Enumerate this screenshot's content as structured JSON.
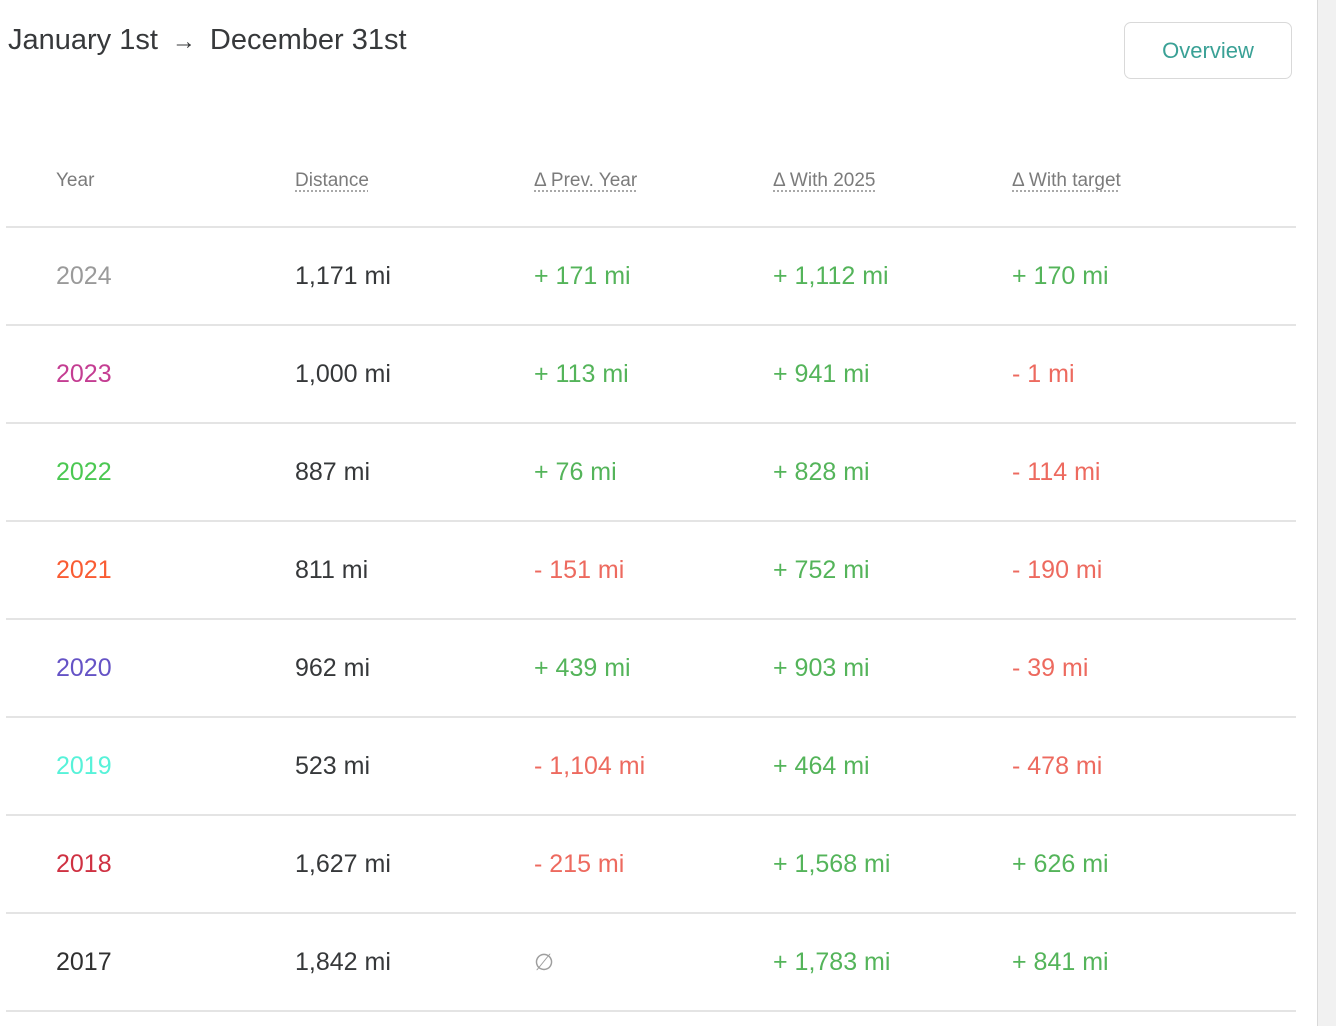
{
  "header": {
    "date_range_start": "January 1st",
    "date_range_arrow": "→",
    "date_range_end": "December 31st",
    "overview_button_label": "Overview"
  },
  "table": {
    "columns": [
      {
        "label": "Year",
        "sortable": false
      },
      {
        "label": "Distance",
        "sortable": true
      },
      {
        "label": "Δ Prev. Year",
        "sortable": true
      },
      {
        "label": "Δ With 2025",
        "sortable": true
      },
      {
        "label": "Δ With target",
        "sortable": true
      }
    ],
    "rows": [
      {
        "year": "2024",
        "year_color": "#9a9a9a",
        "distance": "1,171 mi",
        "delta_prev": {
          "text": "+ 171 mi",
          "tone": "pos"
        },
        "delta_2025": {
          "text": "+ 1,112 mi",
          "tone": "pos"
        },
        "delta_target": {
          "text": "+ 170 mi",
          "tone": "pos"
        }
      },
      {
        "year": "2023",
        "year_color": "#c43d92",
        "distance": "1,000 mi",
        "delta_prev": {
          "text": "+ 113 mi",
          "tone": "pos"
        },
        "delta_2025": {
          "text": "+ 941 mi",
          "tone": "pos"
        },
        "delta_target": {
          "text": "- 1 mi",
          "tone": "neg"
        }
      },
      {
        "year": "2022",
        "year_color": "#4bc852",
        "distance": "887 mi",
        "delta_prev": {
          "text": "+ 76 mi",
          "tone": "pos"
        },
        "delta_2025": {
          "text": "+ 828 mi",
          "tone": "pos"
        },
        "delta_target": {
          "text": "- 114 mi",
          "tone": "neg"
        }
      },
      {
        "year": "2021",
        "year_color": "#f95c33",
        "distance": "811 mi",
        "delta_prev": {
          "text": "- 151 mi",
          "tone": "neg"
        },
        "delta_2025": {
          "text": "+ 752 mi",
          "tone": "pos"
        },
        "delta_target": {
          "text": "- 190 mi",
          "tone": "neg"
        }
      },
      {
        "year": "2020",
        "year_color": "#6553c6",
        "distance": "962 mi",
        "delta_prev": {
          "text": "+ 439 mi",
          "tone": "pos"
        },
        "delta_2025": {
          "text": "+ 903 mi",
          "tone": "pos"
        },
        "delta_target": {
          "text": "- 39 mi",
          "tone": "neg"
        }
      },
      {
        "year": "2019",
        "year_color": "#57f2d9",
        "distance": "523 mi",
        "delta_prev": {
          "text": "- 1,104 mi",
          "tone": "neg"
        },
        "delta_2025": {
          "text": "+ 464 mi",
          "tone": "pos"
        },
        "delta_target": {
          "text": "- 478 mi",
          "tone": "neg"
        }
      },
      {
        "year": "2018",
        "year_color": "#cf3142",
        "distance": "1,627 mi",
        "delta_prev": {
          "text": "- 215 mi",
          "tone": "neg"
        },
        "delta_2025": {
          "text": "+ 1,568 mi",
          "tone": "pos"
        },
        "delta_target": {
          "text": "+ 626 mi",
          "tone": "pos"
        }
      },
      {
        "year": "2017",
        "year_color": "#303030",
        "distance": "1,842 mi",
        "delta_prev": {
          "text": "∅",
          "tone": "none"
        },
        "delta_2025": {
          "text": "+ 1,783 mi",
          "tone": "pos"
        },
        "delta_target": {
          "text": "+ 841 mi",
          "tone": "pos"
        }
      }
    ]
  },
  "colors": {
    "positive_delta": "#54b45a",
    "negative_delta": "#ed6a5f",
    "muted": "#9e9e9e",
    "accent_teal": "#3aa196",
    "divider": "#e4e4e4"
  }
}
